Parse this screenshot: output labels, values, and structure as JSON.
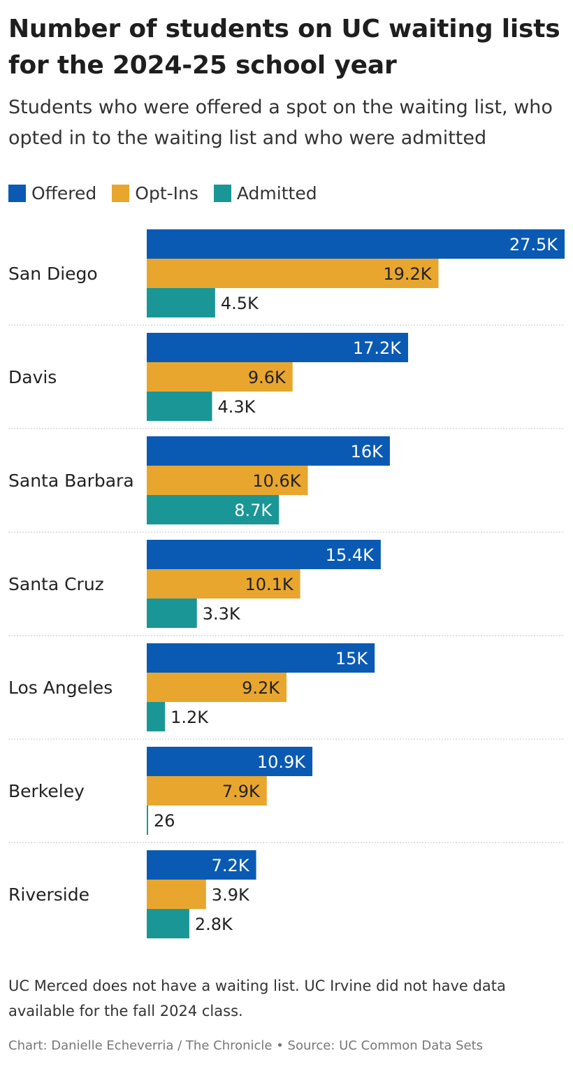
{
  "header": {
    "title": "Number of students on UC waiting lists for the 2024-25 school year",
    "subtitle": "Students who were offered a spot on the waiting list, who opted in to the waiting list and who were admitted"
  },
  "legend": [
    {
      "label": "Offered",
      "color": "#0a5ab4"
    },
    {
      "label": "Opt-Ins",
      "color": "#e8a62e"
    },
    {
      "label": "Admitted",
      "color": "#1a9696"
    }
  ],
  "chart_data": {
    "type": "bar",
    "orientation": "horizontal",
    "categories": [
      "San Diego",
      "Davis",
      "Santa Barbara",
      "Santa Cruz",
      "Los Angeles",
      "Berkeley",
      "Riverside"
    ],
    "series": [
      {
        "name": "Offered",
        "color": "#0a5ab4",
        "values": [
          27500,
          17200,
          16000,
          15400,
          15000,
          10900,
          7200
        ],
        "labels": [
          "27.5K",
          "17.2K",
          "16K",
          "15.4K",
          "15K",
          "10.9K",
          "7.2K"
        ]
      },
      {
        "name": "Opt-Ins",
        "color": "#e8a62e",
        "values": [
          19200,
          9600,
          10600,
          10100,
          9200,
          7900,
          3900
        ],
        "labels": [
          "19.2K",
          "9.6K",
          "10.6K",
          "10.1K",
          "9.2K",
          "7.9K",
          "3.9K"
        ]
      },
      {
        "name": "Admitted",
        "color": "#1a9696",
        "values": [
          4500,
          4300,
          8700,
          3300,
          1200,
          26,
          2800
        ],
        "labels": [
          "4.5K",
          "4.3K",
          "8.7K",
          "3.3K",
          "1.2K",
          "26",
          "2.8K"
        ]
      }
    ],
    "xlim": [
      0,
      27500
    ],
    "grid": false,
    "legend_position": "top-left"
  },
  "footer": {
    "note": "UC Merced does not have a waiting list. UC Irvine did not have data available for the fall 2024 class.",
    "credit": "Chart: Danielle Echeverria / The Chronicle • Source: UC Common Data Sets"
  }
}
